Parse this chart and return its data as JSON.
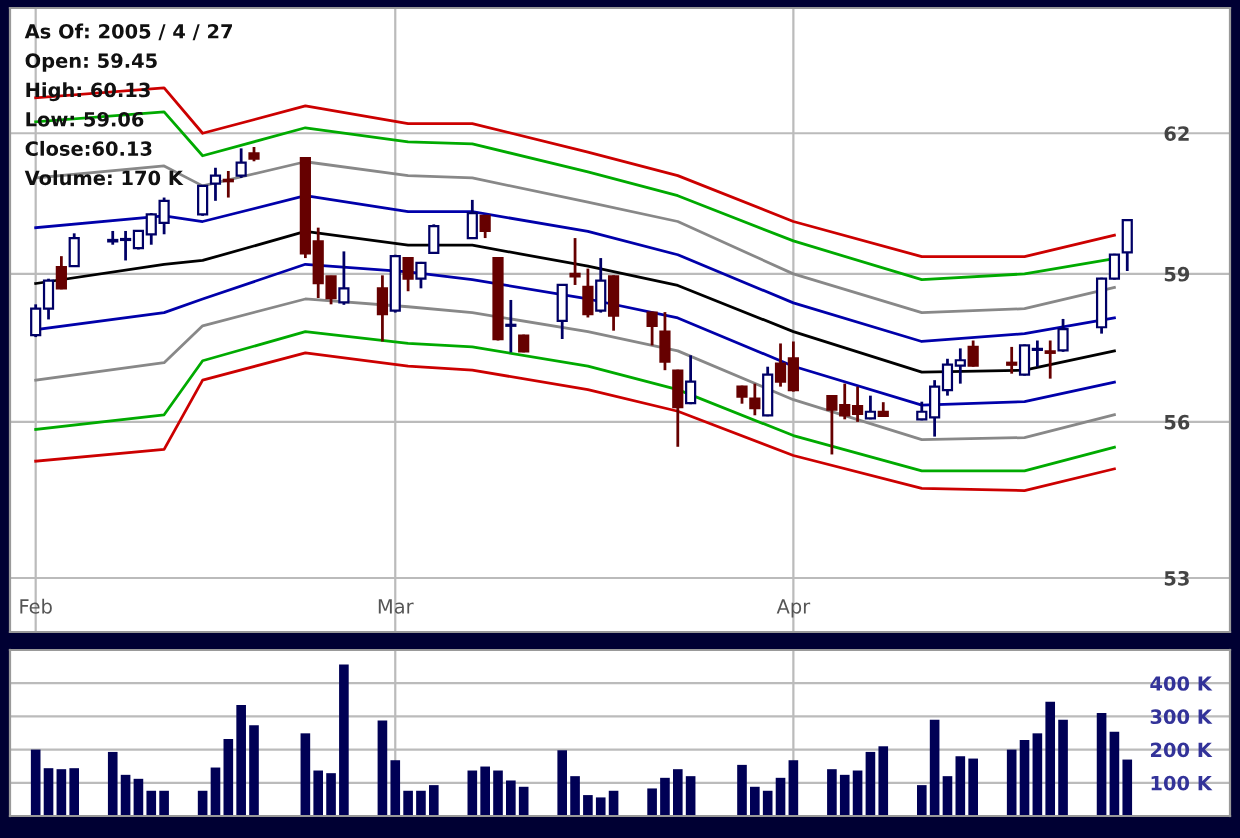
{
  "chart_data": [
    {
      "type": "candlestick",
      "log": true,
      "grid": true,
      "legend": false,
      "annotations": [
        "As Of: 2005 / 4 / 27",
        "Open: 59.45",
        "High: 60.13",
        "Low: 59.06",
        "Close:60.13",
        "Volume: 170 K"
      ],
      "x": [
        "2005-02-01",
        "2005-02-02",
        "2005-02-03",
        "2005-02-04",
        "2005-02-07",
        "2005-02-08",
        "2005-02-09",
        "2005-02-10",
        "2005-02-11",
        "2005-02-14",
        "2005-02-15",
        "2005-02-16",
        "2005-02-17",
        "2005-02-18",
        "2005-02-22",
        "2005-02-23",
        "2005-02-24",
        "2005-02-25",
        "2005-02-28",
        "2005-03-01",
        "2005-03-02",
        "2005-03-03",
        "2005-03-04",
        "2005-03-07",
        "2005-03-08",
        "2005-03-09",
        "2005-03-10",
        "2005-03-11",
        "2005-03-14",
        "2005-03-15",
        "2005-03-16",
        "2005-03-17",
        "2005-03-18",
        "2005-03-21",
        "2005-03-22",
        "2005-03-23",
        "2005-03-24",
        "2005-03-28",
        "2005-03-29",
        "2005-03-30",
        "2005-03-31",
        "2005-04-01",
        "2005-04-04",
        "2005-04-05",
        "2005-04-06",
        "2005-04-07",
        "2005-04-08",
        "2005-04-11",
        "2005-04-12",
        "2005-04-13",
        "2005-04-14",
        "2005-04-15",
        "2005-04-18",
        "2005-04-19",
        "2005-04-20",
        "2005-04-21",
        "2005-04-22",
        "2005-04-25",
        "2005-04-26",
        "2005-04-27"
      ],
      "ohlc": [
        [
          57.74,
          58.37,
          57.7,
          58.28
        ],
        [
          58.28,
          58.9,
          58.06,
          58.86
        ],
        [
          59.14,
          59.37,
          58.68,
          58.7
        ],
        [
          59.16,
          59.85,
          59.15,
          59.75
        ],
        [
          59.68,
          59.9,
          59.61,
          59.71
        ],
        [
          59.71,
          59.9,
          59.28,
          59.73
        ],
        [
          59.54,
          59.92,
          59.51,
          59.9
        ],
        [
          59.83,
          60.28,
          59.61,
          60.25
        ],
        [
          60.07,
          60.61,
          59.83,
          60.54
        ],
        [
          60.25,
          60.88,
          60.22,
          60.86
        ],
        [
          60.91,
          61.25,
          60.54,
          61.08
        ],
        [
          60.99,
          61.18,
          60.61,
          60.96
        ],
        [
          61.08,
          61.67,
          61.03,
          61.36
        ],
        [
          61.56,
          61.7,
          61.39,
          61.45
        ],
        [
          61.46,
          61.48,
          59.33,
          59.43
        ],
        [
          59.68,
          59.97,
          58.5,
          58.81
        ],
        [
          58.95,
          58.96,
          58.37,
          58.5
        ],
        [
          58.41,
          59.47,
          58.36,
          58.7
        ],
        [
          58.7,
          58.97,
          57.61,
          58.17
        ],
        [
          58.24,
          59.4,
          58.2,
          59.37
        ],
        [
          59.33,
          59.35,
          58.64,
          58.9
        ],
        [
          58.9,
          59.25,
          58.7,
          59.23
        ],
        [
          59.44,
          60.04,
          59.42,
          60.0
        ],
        [
          59.75,
          60.56,
          59.73,
          60.28
        ],
        [
          60.22,
          60.24,
          59.75,
          59.9
        ],
        [
          59.33,
          59.35,
          57.63,
          57.66
        ],
        [
          57.93,
          58.46,
          57.39,
          57.95
        ],
        [
          57.73,
          57.75,
          57.39,
          57.41
        ],
        [
          58.03,
          58.79,
          57.66,
          58.77
        ],
        [
          59.0,
          59.75,
          58.77,
          58.95
        ],
        [
          58.73,
          59.11,
          58.1,
          58.17
        ],
        [
          58.24,
          59.33,
          58.2,
          58.86
        ],
        [
          58.95,
          58.97,
          57.83,
          58.14
        ],
        [
          58.2,
          58.22,
          57.53,
          57.93
        ],
        [
          57.81,
          58.21,
          57.03,
          57.2
        ],
        [
          57.02,
          57.04,
          55.51,
          56.29
        ],
        [
          56.37,
          57.33,
          56.35,
          56.8
        ],
        [
          56.7,
          56.72,
          56.36,
          56.5
        ],
        [
          56.46,
          56.76,
          56.13,
          56.27
        ],
        [
          56.13,
          57.1,
          56.11,
          56.94
        ],
        [
          57.16,
          57.57,
          56.7,
          56.8
        ],
        [
          57.27,
          57.61,
          56.6,
          56.63
        ],
        [
          56.51,
          56.53,
          55.36,
          56.24
        ],
        [
          56.33,
          56.76,
          56.05,
          56.13
        ],
        [
          56.31,
          56.7,
          56.0,
          56.16
        ],
        [
          56.07,
          56.52,
          56.05,
          56.2
        ],
        [
          56.2,
          56.39,
          56.1,
          56.12
        ],
        [
          56.05,
          56.4,
          56.03,
          56.2
        ],
        [
          56.09,
          56.83,
          55.71,
          56.7
        ],
        [
          56.63,
          57.26,
          56.52,
          57.14
        ],
        [
          57.12,
          57.47,
          56.76,
          57.23
        ],
        [
          57.5,
          57.63,
          57.1,
          57.12
        ],
        [
          57.18,
          57.5,
          56.96,
          57.14
        ],
        [
          56.94,
          57.55,
          56.92,
          57.53
        ],
        [
          57.44,
          57.63,
          57.1,
          57.46
        ],
        [
          57.41,
          57.63,
          56.86,
          57.38
        ],
        [
          57.43,
          58.07,
          57.4,
          57.86
        ],
        [
          57.9,
          58.92,
          57.77,
          58.9
        ],
        [
          58.9,
          59.42,
          58.88,
          59.4
        ],
        [
          59.45,
          60.13,
          59.06,
          60.13
        ]
      ],
      "colors": [
        "#ffffff",
        "#ffffff",
        "#660000",
        "#ffffff",
        "#ffffff",
        "#ffffff",
        "#ffffff",
        "#ffffff",
        "#ffffff",
        "#ffffff",
        "#ffffff",
        "#660000",
        "#ffffff",
        "#660000",
        "#660000",
        "#660000",
        "#660000",
        "#ffffff",
        "#660000",
        "#ffffff",
        "#660000",
        "#ffffff",
        "#ffffff",
        "#ffffff",
        "#660000",
        "#660000",
        "#ffffff",
        "#660000",
        "#ffffff",
        "#660000",
        "#660000",
        "#ffffff",
        "#660000",
        "#660000",
        "#660000",
        "#660000",
        "#ffffff",
        "#660000",
        "#660000",
        "#ffffff",
        "#660000",
        "#660000",
        "#660000",
        "#660000",
        "#660000",
        "#ffffff",
        "#660000",
        "#ffffff",
        "#ffffff",
        "#ffffff",
        "#ffffff",
        "#660000",
        "#660000",
        "#ffffff",
        "#ffffff",
        "#660000",
        "#ffffff",
        "#ffffff",
        "#ffffff",
        "#ffffff"
      ],
      "series": [
        {
          "type": "line",
          "color": "#cc0000",
          "x": [
            "2005-02-01",
            "2005-02-11",
            "2005-02-14",
            "2005-02-22",
            "2005-03-02",
            "2005-03-07",
            "2005-03-16",
            "2005-03-23",
            "2005-04-01",
            "2005-04-11",
            "2005-04-19",
            "2005-04-26"
          ],
          "values": [
            62.78,
            63.0,
            62.0,
            62.6,
            62.21,
            62.21,
            61.59,
            61.08,
            60.1,
            59.36,
            59.36,
            59.81
          ]
        },
        {
          "type": "line",
          "color": "#00aa00",
          "x": [
            "2005-02-01",
            "2005-02-11",
            "2005-02-14",
            "2005-02-22",
            "2005-03-02",
            "2005-03-07",
            "2005-03-16",
            "2005-03-23",
            "2005-04-01",
            "2005-04-11",
            "2005-04-19",
            "2005-04-26"
          ],
          "values": [
            62.25,
            62.47,
            61.51,
            62.12,
            61.81,
            61.77,
            61.16,
            60.65,
            59.69,
            58.88,
            59.0,
            59.32
          ]
        },
        {
          "type": "line",
          "color": "#888888",
          "x": [
            "2005-02-01",
            "2005-02-11",
            "2005-02-14",
            "2005-02-22",
            "2005-03-02",
            "2005-03-07",
            "2005-03-16",
            "2005-03-23",
            "2005-04-01",
            "2005-04-11",
            "2005-04-19",
            "2005-04-26"
          ],
          "values": [
            61.03,
            61.29,
            60.86,
            61.38,
            61.08,
            61.03,
            60.51,
            60.1,
            59.0,
            58.2,
            58.28,
            58.72
          ]
        },
        {
          "type": "line",
          "color": "#0000aa",
          "x": [
            "2005-02-01",
            "2005-02-11",
            "2005-02-14",
            "2005-02-22",
            "2005-03-02",
            "2005-03-07",
            "2005-03-16",
            "2005-03-23",
            "2005-04-01",
            "2005-04-11",
            "2005-04-19",
            "2005-04-26"
          ],
          "values": [
            59.97,
            60.22,
            60.1,
            60.65,
            60.31,
            60.31,
            59.89,
            59.4,
            58.4,
            57.61,
            57.77,
            58.09
          ]
        },
        {
          "type": "line",
          "color": "#000000",
          "x": [
            "2005-02-01",
            "2005-02-11",
            "2005-02-14",
            "2005-02-22",
            "2005-03-02",
            "2005-03-07",
            "2005-03-16",
            "2005-03-23",
            "2005-04-01",
            "2005-04-11",
            "2005-04-19",
            "2005-04-26"
          ],
          "values": [
            58.8,
            59.2,
            59.28,
            59.89,
            59.6,
            59.6,
            59.16,
            58.76,
            57.81,
            56.99,
            57.03,
            57.42
          ]
        },
        {
          "type": "line",
          "color": "#0000aa",
          "x": [
            "2005-02-01",
            "2005-02-11",
            "2005-02-14",
            "2005-02-22",
            "2005-03-02",
            "2005-03-07",
            "2005-03-16",
            "2005-03-23",
            "2005-04-01",
            "2005-04-11",
            "2005-04-19",
            "2005-04-26"
          ],
          "values": [
            57.85,
            58.2,
            58.48,
            59.2,
            59.04,
            58.88,
            58.48,
            58.09,
            57.11,
            56.33,
            56.4,
            56.79
          ]
        },
        {
          "type": "line",
          "color": "#888888",
          "x": [
            "2005-02-01",
            "2005-02-11",
            "2005-02-14",
            "2005-02-22",
            "2005-03-02",
            "2005-03-07",
            "2005-03-16",
            "2005-03-23",
            "2005-04-01",
            "2005-04-11",
            "2005-04-19",
            "2005-04-26"
          ],
          "values": [
            56.83,
            57.18,
            57.93,
            58.48,
            58.32,
            58.2,
            57.81,
            57.42,
            56.44,
            55.65,
            55.69,
            56.14
          ]
        },
        {
          "type": "line",
          "color": "#00aa00",
          "x": [
            "2005-02-01",
            "2005-02-11",
            "2005-02-14",
            "2005-02-22",
            "2005-03-02",
            "2005-03-07",
            "2005-03-16",
            "2005-03-23",
            "2005-04-01",
            "2005-04-11",
            "2005-04-19",
            "2005-04-26"
          ],
          "values": [
            55.85,
            56.14,
            57.22,
            57.81,
            57.57,
            57.5,
            57.11,
            56.64,
            55.73,
            55.04,
            55.04,
            55.5
          ]
        },
        {
          "type": "line",
          "color": "#cc0000",
          "x": [
            "2005-02-01",
            "2005-02-11",
            "2005-02-14",
            "2005-02-22",
            "2005-03-02",
            "2005-03-07",
            "2005-03-16",
            "2005-03-23",
            "2005-04-01",
            "2005-04-11",
            "2005-04-19",
            "2005-04-26"
          ],
          "values": [
            55.23,
            55.46,
            56.83,
            57.38,
            57.11,
            57.03,
            56.64,
            56.21,
            55.34,
            54.7,
            54.66,
            55.08
          ]
        }
      ],
      "xlim": [
        "2005-01-30",
        "2005-05-05"
      ],
      "xticks": [
        {
          "value": "2005-02-01",
          "label": "Feb"
        },
        {
          "value": "2005-03-01",
          "label": "Mar"
        },
        {
          "value": "2005-04-01",
          "label": "Apr"
        }
      ],
      "ylim": [
        52,
        64.8
      ],
      "yticks": [
        53,
        56,
        59,
        62
      ]
    },
    {
      "type": "bar",
      "grid": true,
      "legend": false,
      "tick_labels": "y",
      "color": "#000055",
      "x": [
        "2005-02-01",
        "2005-02-02",
        "2005-02-03",
        "2005-02-04",
        "2005-02-07",
        "2005-02-08",
        "2005-02-09",
        "2005-02-10",
        "2005-02-11",
        "2005-02-14",
        "2005-02-15",
        "2005-02-16",
        "2005-02-17",
        "2005-02-18",
        "2005-02-22",
        "2005-02-23",
        "2005-02-24",
        "2005-02-25",
        "2005-02-28",
        "2005-03-01",
        "2005-03-02",
        "2005-03-03",
        "2005-03-04",
        "2005-03-07",
        "2005-03-08",
        "2005-03-09",
        "2005-03-10",
        "2005-03-11",
        "2005-03-14",
        "2005-03-15",
        "2005-03-16",
        "2005-03-17",
        "2005-03-18",
        "2005-03-21",
        "2005-03-22",
        "2005-03-23",
        "2005-03-24",
        "2005-03-28",
        "2005-03-29",
        "2005-03-30",
        "2005-03-31",
        "2005-04-01",
        "2005-04-04",
        "2005-04-05",
        "2005-04-06",
        "2005-04-07",
        "2005-04-08",
        "2005-04-11",
        "2005-04-12",
        "2005-04-13",
        "2005-04-14",
        "2005-04-15",
        "2005-04-18",
        "2005-04-19",
        "2005-04-20",
        "2005-04-21",
        "2005-04-22",
        "2005-04-25",
        "2005-04-26",
        "2005-04-27"
      ],
      "values": [
        200,
        144,
        141,
        144,
        193,
        124,
        112,
        76,
        76,
        76,
        146,
        232,
        334,
        273,
        249,
        137,
        129,
        456,
        288,
        168,
        76,
        76,
        93,
        137,
        149,
        137,
        107,
        88,
        198,
        120,
        63,
        56,
        76,
        83,
        115,
        141,
        120,
        154,
        88,
        76,
        115,
        168,
        141,
        124,
        137,
        193,
        210,
        93,
        290,
        120,
        180,
        173,
        200,
        229,
        249,
        344,
        290,
        310,
        254,
        170
      ],
      "xlim": [
        "2005-01-30",
        "2005-05-05"
      ],
      "xticks": [
        {
          "value": "2005-03-01",
          "label": null
        },
        {
          "value": "2005-04-01",
          "label": null
        }
      ],
      "ylim": [
        0,
        500
      ],
      "yticks": [
        {
          "value": 100,
          "label": "100 K"
        },
        {
          "value": 200,
          "label": "200 K"
        },
        {
          "value": 300,
          "label": "300 K"
        },
        {
          "value": 400,
          "label": "400 K"
        }
      ]
    }
  ]
}
